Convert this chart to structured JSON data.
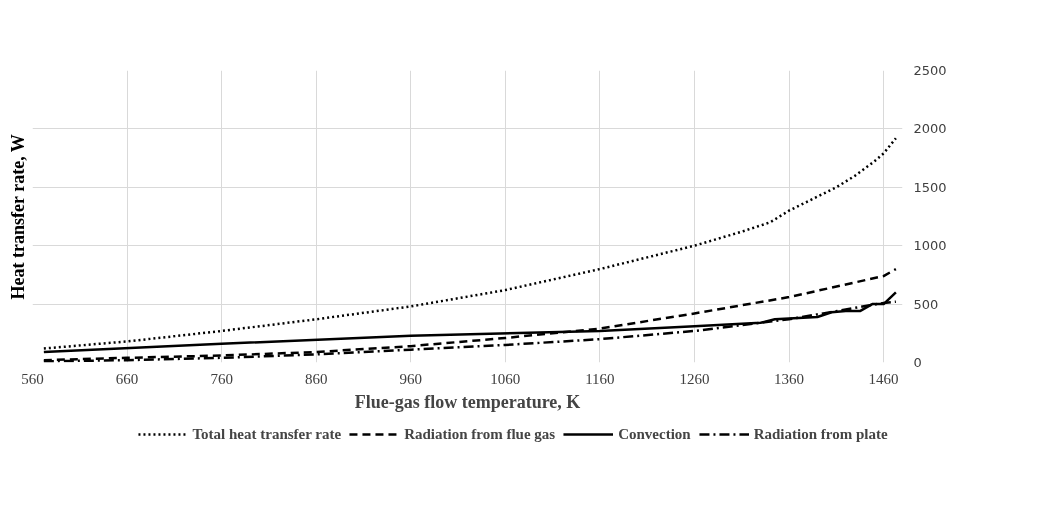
{
  "chart_data": {
    "type": "line",
    "xlabel": "Flue-gas flow temperature, K",
    "ylabel": "Heat transfer rate, W",
    "xlim": [
      560,
      1480
    ],
    "xticks": [
      560,
      660,
      760,
      860,
      960,
      1060,
      1160,
      1260,
      1360,
      1460
    ],
    "ylim": [
      0,
      2500
    ],
    "yticks": [
      0,
      500,
      1000,
      1500,
      2000,
      2500
    ],
    "grid": true,
    "legend": "bottom",
    "series": [
      {
        "name": "Total heat transfer rate",
        "color": "#000000",
        "line_style": "dotted",
        "x": [
          572,
          660,
          760,
          860,
          960,
          1060,
          1160,
          1260,
          1310,
          1340,
          1360,
          1410,
          1430,
          1450,
          1460,
          1473
        ],
        "values": [
          120,
          180,
          270,
          370,
          480,
          620,
          800,
          1000,
          1120,
          1200,
          1300,
          1500,
          1600,
          1720,
          1790,
          1920
        ]
      },
      {
        "name": "Radiation from flue gas",
        "color": "#000000",
        "line_style": "dashed",
        "x": [
          572,
          660,
          760,
          860,
          960,
          1060,
          1160,
          1260,
          1360,
          1460,
          1473
        ],
        "values": [
          20,
          40,
          60,
          90,
          140,
          210,
          290,
          420,
          560,
          740,
          800
        ]
      },
      {
        "name": "Convection",
        "color": "#000000",
        "line_style": "solid",
        "x": [
          572,
          760,
          960,
          1160,
          1260,
          1330,
          1345,
          1390,
          1405,
          1420,
          1435,
          1448,
          1460,
          1473
        ],
        "values": [
          90,
          160,
          230,
          270,
          310,
          340,
          370,
          390,
          430,
          440,
          440,
          500,
          500,
          600
        ]
      },
      {
        "name": "Radiation from plate",
        "color": "#000000",
        "line_style": "dashdot",
        "x": [
          572,
          660,
          760,
          860,
          960,
          1060,
          1160,
          1260,
          1360,
          1460,
          1473
        ],
        "values": [
          10,
          20,
          40,
          70,
          110,
          150,
          200,
          270,
          370,
          510,
          520
        ]
      }
    ]
  }
}
